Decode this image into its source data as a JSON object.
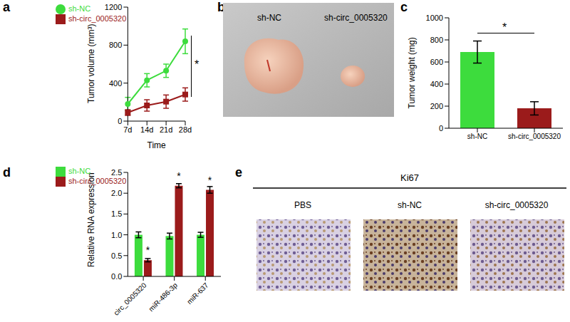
{
  "chart_data": [
    {
      "type": "line",
      "annotations": [
        {
          "text": "a"
        },
        {
          "text": "*"
        }
      ],
      "x_label": "Time",
      "y_label": "Tumor volume (mm³)",
      "categories": [
        "7d",
        "14d",
        "21d",
        "28d"
      ],
      "series": [
        {
          "name": "sh-NC",
          "color": "#3ddc3d",
          "marker": "circle",
          "values": [
            180,
            430,
            530,
            840
          ],
          "errors": [
            70,
            70,
            70,
            130
          ]
        },
        {
          "name": "sh-circ_0005320",
          "color": "#9b1b1b",
          "marker": "square",
          "values": [
            90,
            165,
            205,
            280
          ],
          "errors": [
            30,
            60,
            70,
            70
          ]
        }
      ],
      "ylim": [
        0,
        1200
      ],
      "yticks": [
        0,
        400,
        800,
        1200
      ],
      "legend": "upper left"
    },
    {
      "type": "bar",
      "annotations": [
        {
          "text": "c"
        },
        {
          "text": "*"
        }
      ],
      "y_label": "Tumor weight (mg)",
      "categories": [
        "sh-NC",
        "sh-circ_0005320"
      ],
      "values": [
        690,
        180
      ],
      "errors": [
        100,
        60
      ],
      "colors": [
        "#3ddc3d",
        "#9b1b1b"
      ],
      "ylim": [
        0,
        1000
      ],
      "yticks": [
        0,
        200,
        400,
        600,
        800,
        1000
      ]
    },
    {
      "type": "bar",
      "annotations": [
        {
          "text": "d"
        },
        {
          "text": "*",
          "category": "circ_0005320"
        },
        {
          "text": "*",
          "category": "miR-486-3p"
        },
        {
          "text": "*",
          "category": "miR-637"
        }
      ],
      "y_label": "Relative RNA expression",
      "categories": [
        "circ_0005320",
        "miR-486-3p",
        "miR-637"
      ],
      "series": [
        {
          "name": "sh-NC",
          "color": "#3ddc3d",
          "values": [
            1.0,
            0.97,
            1.0
          ],
          "errors": [
            0.07,
            0.07,
            0.06
          ]
        },
        {
          "name": "sh-circ_0005320",
          "color": "#9b1b1b",
          "values": [
            0.39,
            2.18,
            2.08
          ],
          "errors": [
            0.04,
            0.05,
            0.08
          ]
        }
      ],
      "ylim": [
        0,
        2.5
      ],
      "yticks": [
        {
          "value": 0,
          "label": "0.0"
        },
        {
          "value": 0.5,
          "label": "0.5"
        },
        {
          "value": 1,
          "label": "1.0"
        },
        {
          "value": 1.5,
          "label": "1.5"
        },
        {
          "value": 2,
          "label": "2.0"
        },
        {
          "value": 2.5,
          "label": "2.5"
        }
      ],
      "legend": "upper left"
    }
  ],
  "images": [
    {
      "panel": "b",
      "labels": [
        "sh-NC",
        "sh-circ_0005320"
      ]
    },
    {
      "panel": "e",
      "title": "Ki67",
      "labels": [
        "PBS",
        "sh-NC",
        "sh-circ_0005320"
      ]
    }
  ]
}
